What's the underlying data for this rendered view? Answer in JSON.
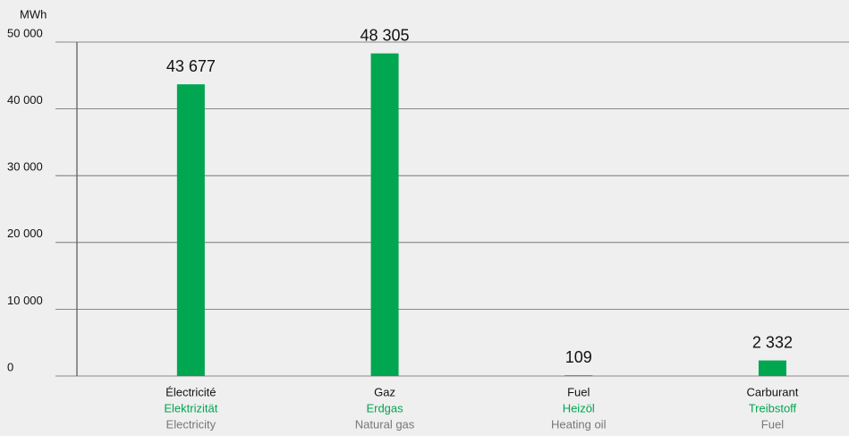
{
  "chart_data": {
    "type": "bar",
    "y_label": "MWh",
    "categories": [
      "Électricité",
      "Gaz",
      "Fuel",
      "Carburant"
    ],
    "categories_de": [
      "Elektrizität",
      "Erdgas",
      "Heizöl",
      "Treibstoff"
    ],
    "categories_en": [
      "Electricity",
      "Natural gas",
      "Heating oil",
      "Fuel"
    ],
    "values": [
      43677,
      48305,
      109,
      2332
    ],
    "value_labels": [
      "43 677",
      "48 305",
      "109",
      "2 332"
    ],
    "color": "#00a650",
    "ylim": [
      0,
      50000
    ],
    "yticks": [
      0,
      {
        "value": 10000,
        "label": "10 000"
      },
      {
        "value": 20000,
        "label": "20 000"
      },
      {
        "value": 30000,
        "label": "30 000"
      },
      {
        "value": 40000,
        "label": "40 000"
      },
      {
        "value": 50000,
        "label": "50 000"
      }
    ],
    "grid": true
  }
}
